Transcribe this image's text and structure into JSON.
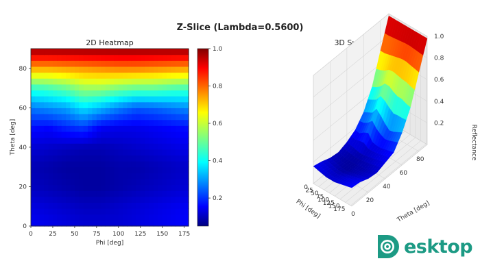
{
  "figure_title": "Z-Slice (Lambda=0.5600)",
  "watermark": {
    "text": "esktop",
    "prefix_icon": "D-logo-icon"
  },
  "chart_data": [
    {
      "type": "heatmap",
      "title": "2D Heatmap",
      "xlabel": "Phi [deg]",
      "ylabel": "Theta [deg]",
      "xlim": [
        0,
        180
      ],
      "ylim": [
        0,
        90
      ],
      "xticks": [
        "0",
        "25",
        "50",
        "75",
        "100",
        "125",
        "150",
        "175"
      ],
      "yticks": [
        "0",
        "20",
        "40",
        "60",
        "80"
      ],
      "colorbar": {
        "ticks": [
          "0.2",
          "0.4",
          "0.6",
          "0.8",
          "1.0"
        ],
        "range": [
          0.05,
          1.0
        ],
        "colormap": "jet"
      },
      "phi": [
        0,
        20,
        40,
        60,
        80,
        100,
        120,
        140,
        160,
        180
      ],
      "theta": [
        0,
        10,
        20,
        30,
        40,
        50,
        60,
        70,
        80,
        90
      ],
      "values": [
        [
          0.16,
          0.15,
          0.14,
          0.13,
          0.13,
          0.13,
          0.14,
          0.15,
          0.16,
          0.17
        ],
        [
          0.14,
          0.13,
          0.12,
          0.11,
          0.11,
          0.12,
          0.13,
          0.14,
          0.15,
          0.16
        ],
        [
          0.11,
          0.1,
          0.09,
          0.08,
          0.08,
          0.09,
          0.1,
          0.11,
          0.12,
          0.13
        ],
        [
          0.1,
          0.09,
          0.08,
          0.08,
          0.08,
          0.09,
          0.09,
          0.1,
          0.11,
          0.12
        ],
        [
          0.13,
          0.12,
          0.11,
          0.1,
          0.1,
          0.11,
          0.12,
          0.13,
          0.14,
          0.15
        ],
        [
          0.18,
          0.17,
          0.2,
          0.22,
          0.16,
          0.15,
          0.15,
          0.16,
          0.17,
          0.18
        ],
        [
          0.28,
          0.3,
          0.32,
          0.38,
          0.34,
          0.29,
          0.25,
          0.26,
          0.28,
          0.3
        ],
        [
          0.45,
          0.47,
          0.5,
          0.55,
          0.55,
          0.52,
          0.5,
          0.5,
          0.48,
          0.47
        ],
        [
          0.72,
          0.72,
          0.73,
          0.74,
          0.75,
          0.76,
          0.76,
          0.75,
          0.74,
          0.73
        ],
        [
          0.98,
          0.98,
          0.98,
          0.98,
          0.98,
          0.98,
          0.98,
          0.98,
          0.98,
          0.98
        ]
      ]
    },
    {
      "type": "surface",
      "title": "3D Surface Plot",
      "xlabel": "Phi [deg]",
      "ylabel": "Theta [deg]",
      "zlabel": "Reflectance",
      "xticks": [
        "0",
        "25",
        "50",
        "75",
        "100",
        "125",
        "150",
        "175"
      ],
      "yticks": [
        "0",
        "20",
        "40",
        "60",
        "80"
      ],
      "zticks": [
        "0.2",
        "0.4",
        "0.6",
        "0.8",
        "1.0"
      ],
      "colormap": "jet",
      "note": "same data as heatmap"
    }
  ]
}
